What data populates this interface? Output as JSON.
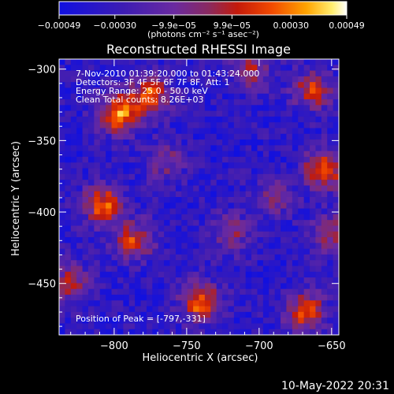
{
  "chart_data": {
    "type": "heatmap",
    "title": "Reconstructed RHESSI Image",
    "xlabel": "Heliocentric X (arcsec)",
    "ylabel": "Heliocentric Y (arcsec)",
    "xlim": [
      -838,
      -645
    ],
    "ylim": [
      -486,
      -293
    ],
    "x_ticks": [
      -800,
      -750,
      -700,
      -650
    ],
    "x_tick_labels": [
      "−800",
      "−750",
      "−700",
      "−650"
    ],
    "y_ticks": [
      -300,
      -350,
      -400,
      -450
    ],
    "y_tick_labels": [
      "−300",
      "−350",
      "−400",
      "−450"
    ],
    "colorbar": {
      "min": -0.00049,
      "max": 0.00049,
      "ticks": [
        -0.00049,
        -0.0003,
        -9.9e-05,
        9.9e-05,
        0.0003,
        0.00049
      ],
      "tick_labels": [
        "−0.00049",
        "−0.00030",
        "−9.9e−05",
        "9.9e−05",
        "0.00030",
        "0.00049"
      ],
      "unit_label": "(photons cm⁻² s⁻¹ asec⁻²)",
      "colormap": "blue-purple-red-yellow-white"
    },
    "hotspots": [
      {
        "x": -797,
        "y": -331,
        "level": 1.0
      },
      {
        "x": -775,
        "y": -318,
        "level": 0.8
      },
      {
        "x": -655,
        "y": -370,
        "level": 0.95
      },
      {
        "x": -663,
        "y": -315,
        "level": 0.7
      },
      {
        "x": -808,
        "y": -395,
        "level": 0.85
      },
      {
        "x": -786,
        "y": -420,
        "level": 0.7
      },
      {
        "x": -740,
        "y": -463,
        "level": 0.9
      },
      {
        "x": -668,
        "y": -470,
        "level": 0.85
      },
      {
        "x": -650,
        "y": -415,
        "level": 0.6
      },
      {
        "x": -830,
        "y": -450,
        "level": 0.6
      },
      {
        "x": -705,
        "y": -300,
        "level": 0.55
      },
      {
        "x": -720,
        "y": -415,
        "level": 0.5
      },
      {
        "x": -690,
        "y": -390,
        "level": 0.45
      },
      {
        "x": -765,
        "y": -365,
        "level": 0.45
      }
    ]
  },
  "annotations": {
    "line1": "7-Nov-2010 01:39:20.000 to 01:43:24.000",
    "line2": "Detectors: 3F 4F 5F 6F 7F 8F, Att: 1",
    "line3": "Energy Range: 25.0 - 50.0 keV",
    "line4": "Clean   Total counts: 8.26E+03",
    "peak": "Position of Peak = [-797,-331]"
  },
  "footer_date": "10-May-2022 20:31",
  "colors": {
    "background": "#000000",
    "text": "#ffffff"
  }
}
